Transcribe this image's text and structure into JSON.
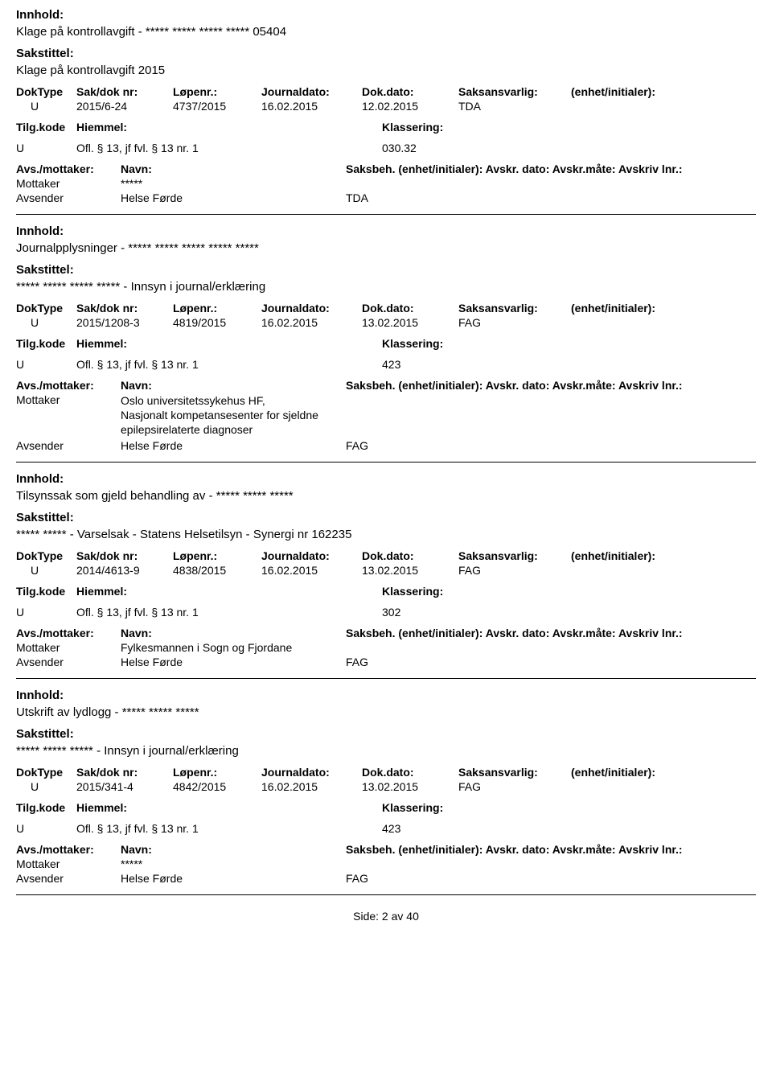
{
  "labels": {
    "innhold": "Innhold:",
    "sakstittel": "Sakstittel:",
    "doktype": "DokType",
    "sakdok": "Sak/dok nr:",
    "lopenr": "Løpenr.:",
    "journaldato": "Journaldato:",
    "dokdato": "Dok.dato:",
    "saksansvarlig": "Saksansvarlig:",
    "enhet": "(enhet/initialer):",
    "tilgkode": "Tilg.kode",
    "hiemmel": "Hiemmel:",
    "klassering": "Klassering:",
    "avsmottaker": "Avs./mottaker:",
    "navn": "Navn:",
    "saksbeh": "Saksbeh. (enhet/initialer): Avskr. dato:  Avskr.måte:  Avskriv lnr.:",
    "mottaker": "Mottaker",
    "avsender": "Avsender"
  },
  "entries": [
    {
      "innhold": "Klage på kontrollavgift - ***** ***** ***** ***** 05404",
      "sakstittel": "Klage på kontrollavgift 2015",
      "doktype": "U",
      "sakdok": "2015/6-24",
      "lopenr": "4737/2015",
      "journaldato": "16.02.2015",
      "dokdato": "12.02.2015",
      "saksansvarlig": "TDA",
      "tilgkode": "U",
      "hiemmel": "Ofl. § 13, jf fvl. § 13 nr. 1",
      "klassering": "030.32",
      "mottaker": "*****",
      "avsender": "Helse Førde",
      "avsender_code": "TDA"
    },
    {
      "innhold": "Journalpplysninger - ***** ***** ***** ***** *****",
      "sakstittel": "***** ***** ***** ***** - Innsyn i journal/erklæring",
      "doktype": "U",
      "sakdok": "2015/1208-3",
      "lopenr": "4819/2015",
      "journaldato": "16.02.2015",
      "dokdato": "13.02.2015",
      "saksansvarlig": "FAG",
      "tilgkode": "U",
      "hiemmel": "Ofl. § 13, jf fvl. § 13 nr. 1",
      "klassering": "423",
      "mottaker": "Oslo universitetssykehus HF, Nasjonalt kompetansesenter for sjeldne epilepsirelaterte diagnoser",
      "avsender": "Helse Førde",
      "avsender_code": "FAG"
    },
    {
      "innhold": "Tilsynssak som gjeld behandling av - ***** ***** *****",
      "sakstittel": "***** ***** - Varselsak - Statens Helsetilsyn - Synergi nr 162235",
      "doktype": "U",
      "sakdok": "2014/4613-9",
      "lopenr": "4838/2015",
      "journaldato": "16.02.2015",
      "dokdato": "13.02.2015",
      "saksansvarlig": "FAG",
      "tilgkode": "U",
      "hiemmel": "Ofl. § 13, jf fvl. § 13 nr. 1",
      "klassering": "302",
      "mottaker": "Fylkesmannen i Sogn og Fjordane",
      "avsender": "Helse Førde",
      "avsender_code": "FAG"
    },
    {
      "innhold": "Utskrift av lydlogg  - ***** ***** *****",
      "sakstittel": "***** ***** ***** - Innsyn i journal/erklæring",
      "doktype": "U",
      "sakdok": "2015/341-4",
      "lopenr": "4842/2015",
      "journaldato": "16.02.2015",
      "dokdato": "13.02.2015",
      "saksansvarlig": "FAG",
      "tilgkode": "U",
      "hiemmel": "Ofl. § 13, jf fvl. § 13 nr. 1",
      "klassering": "423",
      "mottaker": "*****",
      "avsender": "Helse Førde",
      "avsender_code": "FAG"
    }
  ],
  "footer": "Side: 2  av  40"
}
